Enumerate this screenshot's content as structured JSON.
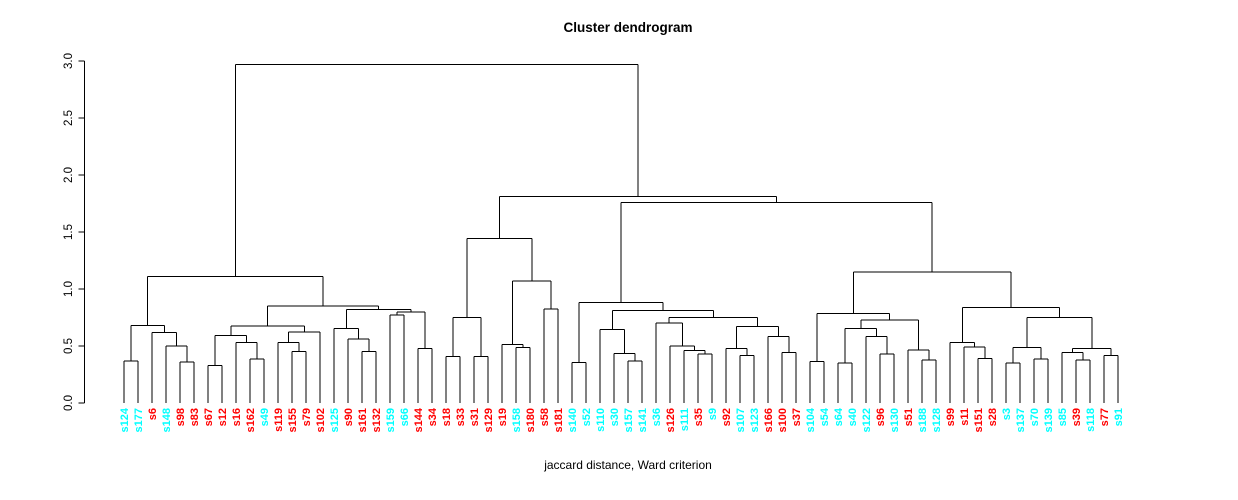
{
  "chart_data": {
    "type": "dendrogram",
    "title": "Cluster dendrogram",
    "xlabel": "jaccard distance, Ward criterion",
    "ylabel": "",
    "ylim": [
      0,
      3
    ],
    "y_ticks": [
      "0.0",
      "0.5",
      "1.0",
      "1.5",
      "2.0",
      "2.5",
      "3.0"
    ],
    "grid": false,
    "legend": "none",
    "colors": {
      "cyan": "#00FFFF",
      "red": "#FF0000",
      "line": "#000000",
      "background": "#FFFFFF"
    },
    "root_height": 2.97,
    "leaves": [
      {
        "label": "s124",
        "c": "cyan"
      },
      {
        "label": "s177",
        "c": "cyan"
      },
      {
        "label": "s6",
        "c": "red"
      },
      {
        "label": "s148",
        "c": "cyan"
      },
      {
        "label": "s98",
        "c": "red"
      },
      {
        "label": "s83",
        "c": "red"
      },
      {
        "label": "s67",
        "c": "red"
      },
      {
        "label": "s12",
        "c": "red"
      },
      {
        "label": "s16",
        "c": "red"
      },
      {
        "label": "s162",
        "c": "red"
      },
      {
        "label": "s49",
        "c": "cyan"
      },
      {
        "label": "s119",
        "c": "red"
      },
      {
        "label": "s155",
        "c": "red"
      },
      {
        "label": "s79",
        "c": "red"
      },
      {
        "label": "s102",
        "c": "red"
      },
      {
        "label": "s125",
        "c": "cyan"
      },
      {
        "label": "s90",
        "c": "red"
      },
      {
        "label": "s161",
        "c": "red"
      },
      {
        "label": "s132",
        "c": "red"
      },
      {
        "label": "s159",
        "c": "cyan"
      },
      {
        "label": "s66",
        "c": "cyan"
      },
      {
        "label": "s144",
        "c": "red"
      },
      {
        "label": "s34",
        "c": "red"
      },
      {
        "label": "s18",
        "c": "red"
      },
      {
        "label": "s33",
        "c": "red"
      },
      {
        "label": "s31",
        "c": "red"
      },
      {
        "label": "s129",
        "c": "red"
      },
      {
        "label": "s19",
        "c": "red"
      },
      {
        "label": "s158",
        "c": "cyan"
      },
      {
        "label": "s180",
        "c": "red"
      },
      {
        "label": "s58",
        "c": "red"
      },
      {
        "label": "s181",
        "c": "red"
      },
      {
        "label": "s140",
        "c": "cyan"
      },
      {
        "label": "s52",
        "c": "cyan"
      },
      {
        "label": "s110",
        "c": "cyan"
      },
      {
        "label": "s30",
        "c": "cyan"
      },
      {
        "label": "s157",
        "c": "cyan"
      },
      {
        "label": "s141",
        "c": "cyan"
      },
      {
        "label": "s36",
        "c": "cyan"
      },
      {
        "label": "s126",
        "c": "red"
      },
      {
        "label": "s111",
        "c": "cyan"
      },
      {
        "label": "s35",
        "c": "red"
      },
      {
        "label": "s9",
        "c": "cyan"
      },
      {
        "label": "s92",
        "c": "red"
      },
      {
        "label": "s107",
        "c": "cyan"
      },
      {
        "label": "s123",
        "c": "cyan"
      },
      {
        "label": "s166",
        "c": "red"
      },
      {
        "label": "s100",
        "c": "red"
      },
      {
        "label": "s37",
        "c": "red"
      },
      {
        "label": "s104",
        "c": "cyan"
      },
      {
        "label": "s54",
        "c": "cyan"
      },
      {
        "label": "s64",
        "c": "cyan"
      },
      {
        "label": "s40",
        "c": "cyan"
      },
      {
        "label": "s122",
        "c": "cyan"
      },
      {
        "label": "s96",
        "c": "red"
      },
      {
        "label": "s130",
        "c": "cyan"
      },
      {
        "label": "s51",
        "c": "red"
      },
      {
        "label": "s188",
        "c": "cyan"
      },
      {
        "label": "s128",
        "c": "cyan"
      },
      {
        "label": "s99",
        "c": "red"
      },
      {
        "label": "s11",
        "c": "red"
      },
      {
        "label": "s151",
        "c": "red"
      },
      {
        "label": "s28",
        "c": "red"
      },
      {
        "label": "s3",
        "c": "cyan"
      },
      {
        "label": "s137",
        "c": "cyan"
      },
      {
        "label": "s70",
        "c": "cyan"
      },
      {
        "label": "s139",
        "c": "cyan"
      },
      {
        "label": "s85",
        "c": "cyan"
      },
      {
        "label": "s39",
        "c": "red"
      },
      {
        "label": "s118",
        "c": "cyan"
      },
      {
        "label": "s77",
        "c": "red"
      },
      {
        "label": "s91",
        "c": "cyan"
      }
    ],
    "merges": [
      2.97,
      [
        1.11,
        [
          0.68,
          [
            0.37,
            0,
            1
          ],
          [
            0.62,
            2,
            [
              0.5,
              3,
              [
                0.36,
                4,
                5
              ]
            ]
          ]
        ],
        [
          0.85,
          [
            0.675,
            [
              0.59,
              [
                0.33,
                6,
                7
              ],
              [
                0.53,
                8,
                [
                  0.385,
                  9,
                  10
                ]
              ]
            ],
            [
              0.625,
              [
                0.53,
                11,
                [
                  0.45,
                  12,
                  13
                ]
              ],
              14
            ]
          ],
          [
            0.82,
            [
              0.655,
              15,
              [
                0.56,
                16,
                [
                  0.45,
                  17,
                  18
                ]
              ]
            ],
            [
              0.8,
              [
                0.77,
                19,
                20
              ],
              [
                0.48,
                21,
                22
              ]
            ]
          ]
        ]
      ],
      [
        1.81,
        [
          1.445,
          [
            0.75,
            [
              0.41,
              23,
              24
            ],
            [
              0.41,
              25,
              26
            ]
          ],
          [
            1.07,
            [
              0.515,
              27,
              [
                0.485,
                28,
                29
              ]
            ],
            [
              0.825,
              30,
              31
            ]
          ]
        ],
        [
          1.76,
          [
            0.88,
            [
              0.354,
              32,
              33
            ],
            [
              0.81,
              [
                0.646,
                34,
                [
                  0.436,
                  35,
                  [
                    0.37,
                    36,
                    37
                  ]
                ]
              ],
              [
                0.75,
                [
                  0.7,
                  38,
                  [
                    0.5,
                    39,
                    [
                      0.46,
                      40,
                      [
                        0.43,
                        41,
                        42
                      ]
                    ]
                  ]
                ],
                [
                  0.67,
                  [
                    0.48,
                    43,
                    [
                      0.415,
                      44,
                      45
                    ]
                  ],
                  [
                    0.582,
                    46,
                    [
                      0.445,
                      47,
                      48
                    ]
                  ]
                ]
              ]
            ]
          ],
          [
            1.15,
            [
              0.787,
              [
                0.365,
                49,
                50
              ],
              [
                0.73,
                [
                  0.655,
                  [
                    0.35,
                    51,
                    52
                  ],
                  [
                    0.582,
                    53,
                    [
                      0.43,
                      54,
                      55
                    ]
                  ]
                ],
                [
                  0.465,
                  56,
                  [
                    0.377,
                    57,
                    58
                  ]
                ]
              ]
            ],
            [
              0.836,
              [
                0.53,
                59,
                [
                  0.49,
                  60,
                  [
                    0.39,
                    61,
                    62
                  ]
                ]
              ],
              [
                0.75,
                [
                  0.485,
                  [
                    0.35,
                    63,
                    64
                  ],
                  [
                    0.386,
                    65,
                    66
                  ]
                ],
                [
                  0.48,
                  [
                    0.445,
                    67,
                    [
                      0.377,
                      68,
                      69
                    ]
                  ],
                  [
                    0.415,
                    70,
                    71
                  ]
                ]
              ]
            ]
          ]
        ]
      ]
    ]
  }
}
